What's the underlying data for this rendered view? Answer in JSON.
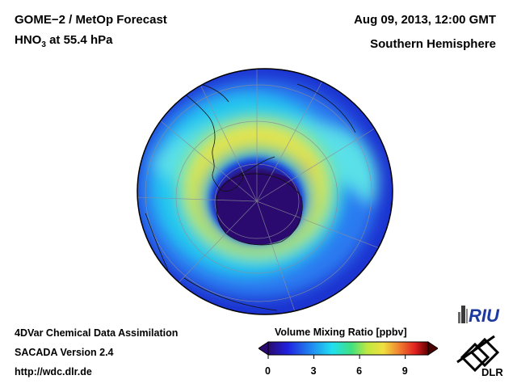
{
  "header": {
    "title": "GOME−2 / MetOp Forecast",
    "species_main": "HNO",
    "species_sub": "3",
    "species_rest": " at 55.4 hPa",
    "date": "Aug 09, 2013, 12:00 GMT",
    "region": "Southern Hemisphere"
  },
  "footer": {
    "line1": "4DVar Chemical Data Assimilation",
    "line2": "SACADA Version 2.4",
    "line3": "http://wdc.dlr.de"
  },
  "colorbar": {
    "title": "Volume Mixing Ratio [ppbv]",
    "ticks": [
      "0",
      "3",
      "6",
      "9"
    ],
    "range": [
      0,
      10.5
    ]
  },
  "logos": {
    "riu": "RIU",
    "dlr": "DLR"
  },
  "colors": {
    "ocean_deep": "#1a2fcf",
    "vortex": "#2a0a6e",
    "ring": "#f0e040",
    "peak": "#e8401e"
  }
}
